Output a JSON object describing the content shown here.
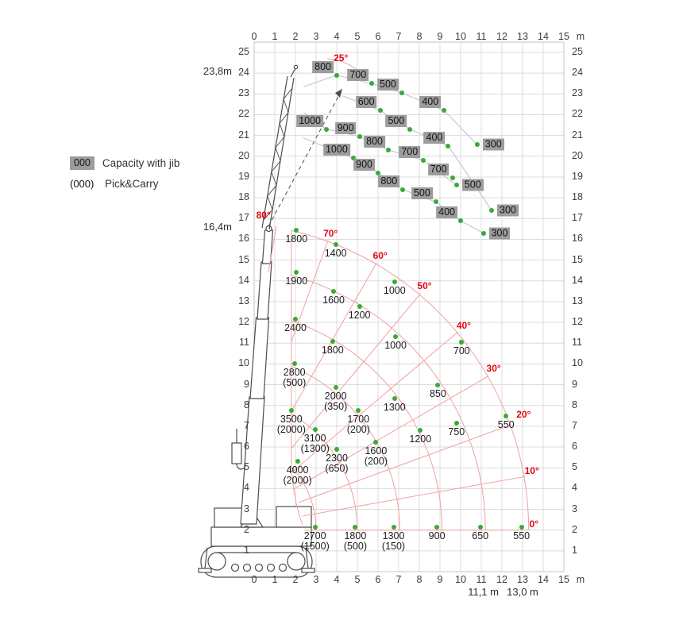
{
  "colors": {
    "dot_green": "#3aa935",
    "angle_red": "#e30613",
    "fan_line_red": "#efa2a2",
    "jib_box_bg": "#9c9c9c",
    "jib_curve_gray": "#bfbfce",
    "grid": "#dcdcdc",
    "border": "#c4c4c4",
    "crane_outline": "#4d4d4d"
  },
  "legend": {
    "jib_sample": "000",
    "jib_text": "Capacity with jib",
    "pick_sample": "(000)",
    "pick_text": "Pick&Carry"
  },
  "side_labels": {
    "max_jib_height": "23,8m",
    "max_boom_height": "16,4m"
  },
  "footer_labels": [
    {
      "text": "11,1 m",
      "x_m": 11.1
    },
    {
      "text": "13,0 m",
      "x_m": 13.0
    }
  ],
  "axes": {
    "x_ticks": [
      0,
      1,
      2,
      3,
      4,
      5,
      6,
      7,
      8,
      9,
      10,
      11,
      12,
      13,
      14,
      15
    ],
    "x_unit": "m",
    "y_ticks": [
      1,
      2,
      3,
      4,
      5,
      6,
      7,
      8,
      9,
      10,
      11,
      12,
      13,
      14,
      15,
      16,
      17,
      18,
      19,
      20,
      21,
      22,
      23,
      24,
      25
    ]
  },
  "chart_data": {
    "type": "scatter",
    "x_axis": {
      "min": 0,
      "max": 15,
      "unit": "m"
    },
    "y_axis": {
      "min": 0,
      "max": 25,
      "unit": "m"
    },
    "boom_pivot_m": {
      "x": -1.5,
      "y": 2.0
    },
    "angle_lines_deg": [
      0,
      10,
      20,
      30,
      40,
      50,
      60,
      70,
      80
    ],
    "extension_arc_radii_m": [
      4.5,
      6.5,
      8.55,
      10.6,
      12.7,
      14.8
    ],
    "angle_labels": [
      {
        "text": "25°",
        "x": 4.2,
        "y": 24.75
      },
      {
        "text": "80°",
        "x": 0.45,
        "y": 17.15
      },
      {
        "text": "70°",
        "x": 3.7,
        "y": 16.3
      },
      {
        "text": "60°",
        "x": 6.1,
        "y": 15.2
      },
      {
        "text": "50°",
        "x": 8.25,
        "y": 13.75
      },
      {
        "text": "40°",
        "x": 10.15,
        "y": 11.85
      },
      {
        "text": "30°",
        "x": 11.6,
        "y": 9.8
      },
      {
        "text": "20°",
        "x": 13.05,
        "y": 7.55
      },
      {
        "text": "10°",
        "x": 13.45,
        "y": 4.85
      },
      {
        "text": "0°",
        "x": 13.55,
        "y": 2.3
      }
    ],
    "main_boom_points": [
      {
        "capacity": "1800",
        "x": 2.05,
        "y": 16.45
      },
      {
        "capacity": "1400",
        "x": 3.95,
        "y": 15.75
      },
      {
        "capacity": "1900",
        "x": 2.05,
        "y": 14.4
      },
      {
        "capacity": "1000",
        "x": 6.8,
        "y": 13.95
      },
      {
        "capacity": "1600",
        "x": 3.85,
        "y": 13.5
      },
      {
        "capacity": "1200",
        "x": 5.1,
        "y": 12.75
      },
      {
        "capacity": "2400",
        "x": 2.0,
        "y": 12.15
      },
      {
        "capacity": "1000",
        "x": 6.85,
        "y": 11.3
      },
      {
        "capacity": "1800",
        "x": 3.8,
        "y": 11.1
      },
      {
        "capacity": "700",
        "x": 10.05,
        "y": 11.05
      },
      {
        "capacity": "2800",
        "pick": "(500)",
        "x": 1.95,
        "y": 10.0
      },
      {
        "capacity": "850",
        "x": 8.9,
        "y": 9.0
      },
      {
        "capacity": "2000",
        "pick": "(350)",
        "x": 3.95,
        "y": 8.85
      },
      {
        "capacity": "1300",
        "x": 6.8,
        "y": 8.35
      },
      {
        "capacity": "3500",
        "pick": "(2000)",
        "x": 1.8,
        "y": 7.75
      },
      {
        "capacity": "1700",
        "pick": "(200)",
        "x": 5.05,
        "y": 7.75
      },
      {
        "capacity": "550",
        "x": 12.2,
        "y": 7.5
      },
      {
        "capacity": "750",
        "x": 9.8,
        "y": 7.15
      },
      {
        "capacity": "3100",
        "pick": "(1300)",
        "x": 2.95,
        "y": 6.85
      },
      {
        "capacity": "1200",
        "x": 8.05,
        "y": 6.8
      },
      {
        "capacity": "1600",
        "pick": "(200)",
        "x": 5.9,
        "y": 6.25
      },
      {
        "capacity": "2300",
        "pick": "(650)",
        "x": 4.0,
        "y": 5.9
      },
      {
        "capacity": "4000",
        "pick": "(2000)",
        "x": 2.1,
        "y": 5.3
      },
      {
        "capacity": "2700",
        "pick": "(1500)",
        "x": 2.95,
        "y": 2.15
      },
      {
        "capacity": "1800",
        "pick": "(500)",
        "x": 4.9,
        "y": 2.15
      },
      {
        "capacity": "1300",
        "pick": "(150)",
        "x": 6.75,
        "y": 2.15
      },
      {
        "capacity": "900",
        "x": 8.85,
        "y": 2.15
      },
      {
        "capacity": "650",
        "x": 10.95,
        "y": 2.15
      },
      {
        "capacity": "550",
        "x": 12.95,
        "y": 2.15
      }
    ],
    "jib_points": [
      {
        "capacity": "800",
        "x": 4.0,
        "y": 23.9
      },
      {
        "capacity": "700",
        "x": 5.7,
        "y": 23.5
      },
      {
        "capacity": "500",
        "x": 7.15,
        "y": 23.05
      },
      {
        "capacity": "600",
        "x": 6.1,
        "y": 22.2
      },
      {
        "capacity": "400",
        "x": 9.2,
        "y": 22.2
      },
      {
        "capacity": "1000",
        "x": 3.5,
        "y": 21.3
      },
      {
        "capacity": "500",
        "x": 7.55,
        "y": 21.3
      },
      {
        "capacity": "900",
        "x": 5.1,
        "y": 20.95
      },
      {
        "capacity": "400",
        "x": 9.4,
        "y": 20.5
      },
      {
        "capacity": "800",
        "x": 6.5,
        "y": 20.3
      },
      {
        "capacity": "300",
        "x": 10.8,
        "y": 20.55,
        "side": "right"
      },
      {
        "capacity": "1000",
        "x": 4.8,
        "y": 19.9
      },
      {
        "capacity": "700",
        "x": 8.2,
        "y": 19.8
      },
      {
        "capacity": "900",
        "x": 6.0,
        "y": 19.2
      },
      {
        "capacity": "700",
        "x": 9.6,
        "y": 18.95
      },
      {
        "capacity": "800",
        "x": 7.2,
        "y": 18.4
      },
      {
        "capacity": "500",
        "x": 9.8,
        "y": 18.6,
        "side": "right"
      },
      {
        "capacity": "500",
        "x": 8.8,
        "y": 17.8
      },
      {
        "capacity": "400",
        "x": 10.0,
        "y": 16.9
      },
      {
        "capacity": "300",
        "x": 11.5,
        "y": 17.4,
        "side": "right"
      },
      {
        "capacity": "300",
        "x": 11.1,
        "y": 16.3,
        "side": "right"
      }
    ],
    "jib_curves": [
      [
        [
          2.4,
          23.35
        ],
        [
          4.0,
          23.9
        ],
        [
          5.7,
          23.5
        ],
        [
          7.15,
          23.05
        ],
        [
          9.2,
          22.2
        ],
        [
          10.8,
          20.55
        ]
      ],
      [
        [
          2.4,
          22.1
        ],
        [
          3.5,
          21.3
        ],
        [
          5.1,
          20.95
        ],
        [
          6.5,
          20.3
        ],
        [
          8.2,
          19.8
        ],
        [
          9.8,
          18.6
        ]
      ],
      [
        [
          2.35,
          20.9
        ],
        [
          4.8,
          19.9
        ],
        [
          6.0,
          19.2
        ],
        [
          7.2,
          18.4
        ],
        [
          8.8,
          17.8
        ],
        [
          10.0,
          16.9
        ],
        [
          11.1,
          16.3
        ]
      ],
      [
        [
          4.3,
          22.9
        ],
        [
          6.1,
          22.2
        ],
        [
          7.55,
          21.3
        ],
        [
          9.4,
          20.5
        ],
        [
          11.5,
          17.4
        ]
      ]
    ]
  }
}
